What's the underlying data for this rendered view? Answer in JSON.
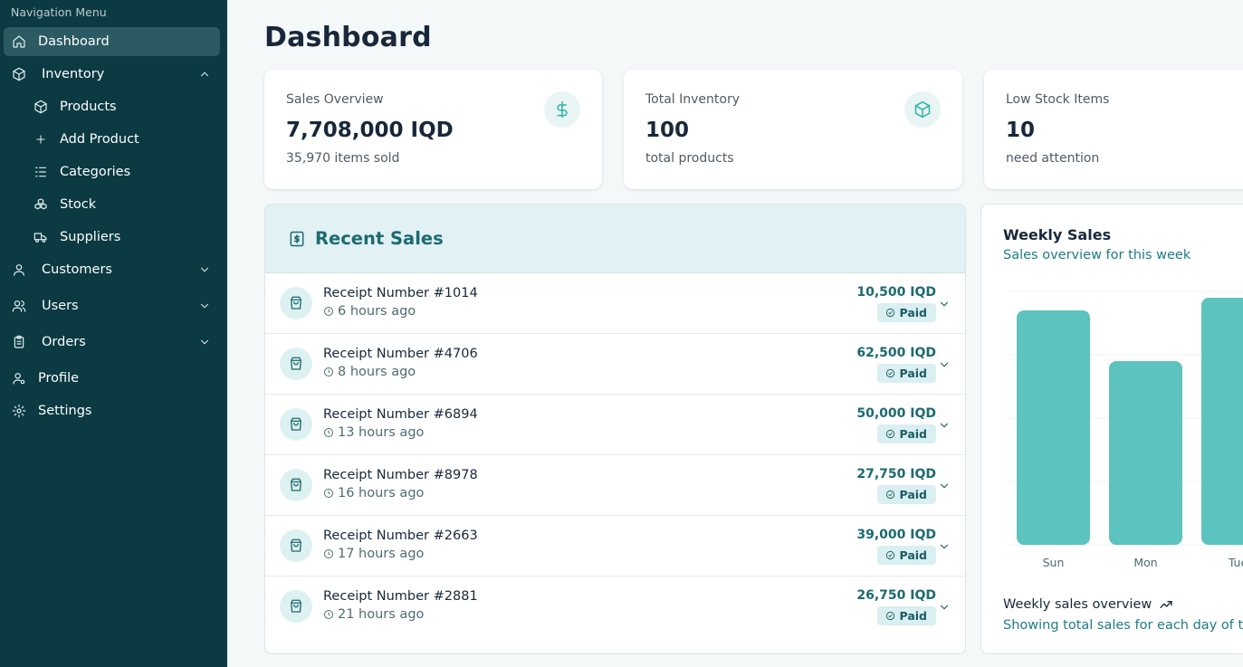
{
  "sidebar": {
    "menu_label": "Navigation Menu",
    "items": [
      {
        "label": "Dashboard",
        "icon": "home-icon"
      },
      {
        "label": "Inventory",
        "icon": "box-icon"
      },
      {
        "label": "Products",
        "icon": "box-icon"
      },
      {
        "label": "Add Product",
        "icon": "plus-icon"
      },
      {
        "label": "Categories",
        "icon": "list-icon"
      },
      {
        "label": "Stock",
        "icon": "boxes-icon"
      },
      {
        "label": "Suppliers",
        "icon": "truck-icon"
      },
      {
        "label": "Customers",
        "icon": "user-icon"
      },
      {
        "label": "Users",
        "icon": "users-icon"
      },
      {
        "label": "Orders",
        "icon": "clipboard-icon"
      },
      {
        "label": "Profile",
        "icon": "user-cog-icon"
      },
      {
        "label": "Settings",
        "icon": "gear-icon"
      }
    ]
  },
  "page": {
    "title": "Dashboard"
  },
  "stats": [
    {
      "label": "Sales Overview",
      "value": "7,708,000 IQD",
      "sub": "35,970 items sold",
      "icon": "dollar-icon"
    },
    {
      "label": "Total Inventory",
      "value": "100",
      "sub": "total products",
      "icon": "box-icon"
    },
    {
      "label": "Low Stock Items",
      "value": "10",
      "sub": "need attention"
    }
  ],
  "recent_sales": {
    "title": "Recent Sales",
    "rows": [
      {
        "receipt": "Receipt Number #1014",
        "time": "6 hours ago",
        "amount": "10,500 IQD",
        "status": "Paid"
      },
      {
        "receipt": "Receipt Number #4706",
        "time": "8 hours ago",
        "amount": "62,500 IQD",
        "status": "Paid"
      },
      {
        "receipt": "Receipt Number #6894",
        "time": "13 hours ago",
        "amount": "50,000 IQD",
        "status": "Paid"
      },
      {
        "receipt": "Receipt Number #8978",
        "time": "16 hours ago",
        "amount": "27,750 IQD",
        "status": "Paid"
      },
      {
        "receipt": "Receipt Number #2663",
        "time": "17 hours ago",
        "amount": "39,000 IQD",
        "status": "Paid"
      },
      {
        "receipt": "Receipt Number #2881",
        "time": "21 hours ago",
        "amount": "26,750 IQD",
        "status": "Paid"
      }
    ]
  },
  "weekly": {
    "title": "Weekly Sales",
    "subtitle": "Sales overview for this week",
    "footer_title": "Weekly sales overview",
    "footer_sub": "Showing total sales for each day of the week"
  },
  "chart_data": {
    "type": "bar",
    "title": "Weekly Sales",
    "categories": [
      "Sun",
      "Mon",
      "Tue"
    ],
    "values": [
      3.7,
      2.9,
      3.9
    ],
    "ylim": [
      0,
      4
    ],
    "grid": true,
    "xlabel": "",
    "ylabel": "",
    "bar_color": "#5cc3bf"
  },
  "colors": {
    "sidebar_bg": "#0b3a42",
    "sidebar_active": "#2b5a62",
    "accent": "#1c6a70",
    "icon_accent": "#2bb5a5",
    "bar": "#5cc3bf"
  }
}
